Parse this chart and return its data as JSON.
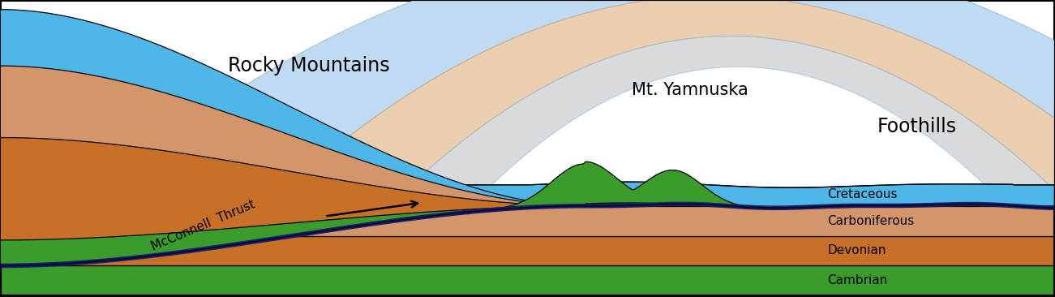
{
  "colors": {
    "blue_cret": "#4DB8E8",
    "blue_dark_navy": "#1A2060",
    "blue_arch": "#B8D8F0",
    "blue_arch_edge": "#A0B8CC",
    "beige_arch": "#E8C9A8",
    "beige_arch_edge": "#C8A888",
    "green_dark": "#3A9C2A",
    "green_light": "#B0D8A8",
    "orange_dark": "#C87028",
    "orange_light": "#D4956A",
    "gray_light": "#C8CCD0",
    "white": "#FFFFFF",
    "black": "#000000"
  },
  "labels": {
    "rocky_mountains": "Rocky Mountains",
    "mt_yamnuska": "Mt. Yamnuska",
    "foothills": "Foothills",
    "mcconnell_thrust": "McConnell  Thrust",
    "cretaceous": "Cretaceous",
    "carboniferous": "Carboniferous",
    "devonian": "Devonian",
    "cambrian": "Cambrian"
  },
  "figsize": [
    13.01,
    3.66
  ],
  "dpi": 100
}
